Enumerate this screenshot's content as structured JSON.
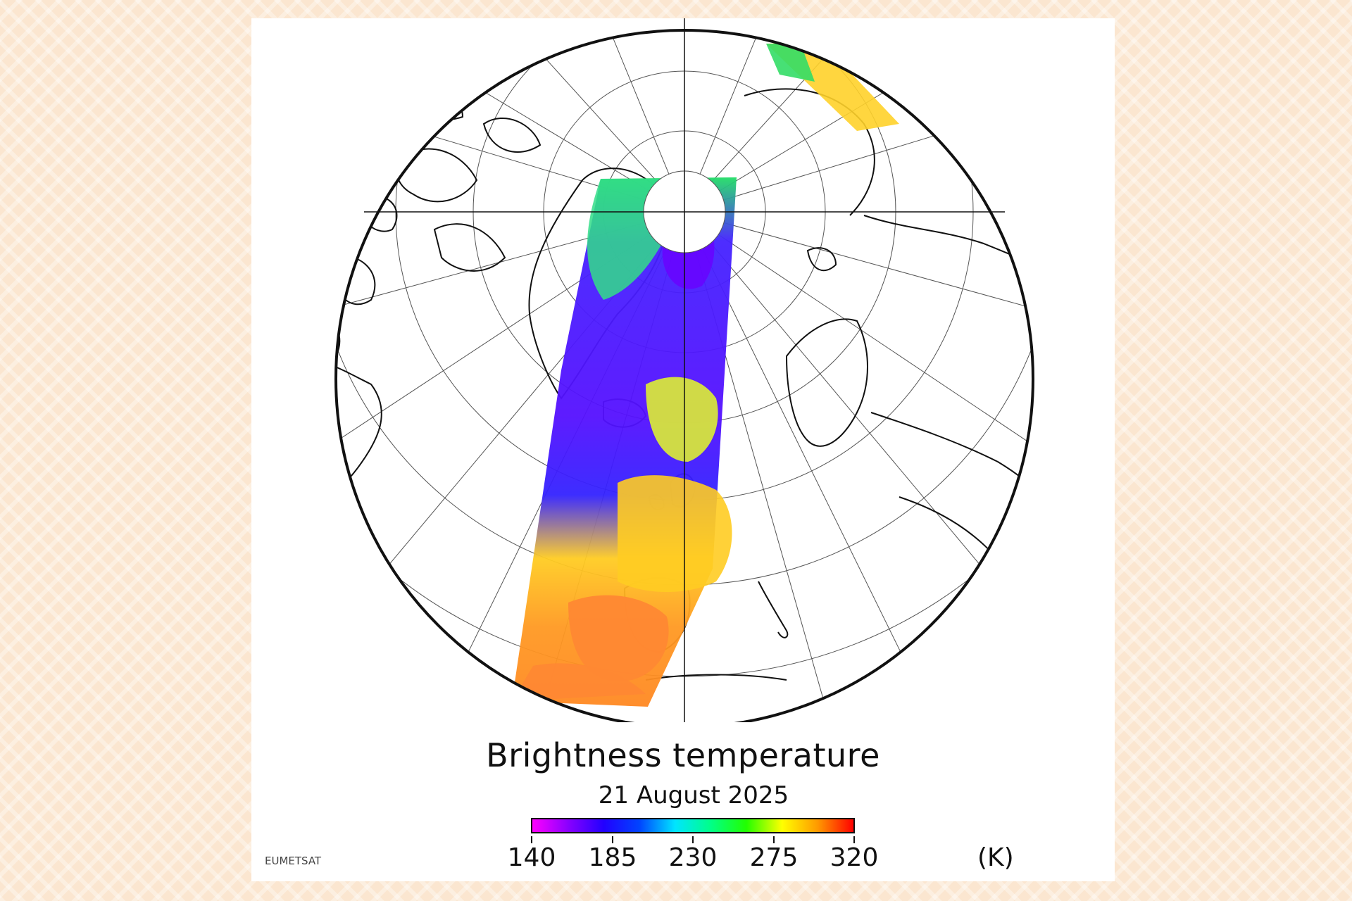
{
  "title": "Brightness temperature",
  "date": "21 August 2025",
  "credit": "EUMETSAT",
  "colorbar": {
    "ticks": [
      "140",
      "185",
      "230",
      "275",
      "320"
    ],
    "unit": "(K)",
    "min": 140,
    "max": 320,
    "colors": [
      "#ff00ff",
      "#8a00ff",
      "#2200ff",
      "#0044ff",
      "#00e5ff",
      "#00ff88",
      "#22ff00",
      "#ffff00",
      "#ff9900",
      "#ff0000"
    ]
  },
  "map": {
    "projection": "polar stereographic",
    "graticule": true,
    "coastlines": true
  }
}
